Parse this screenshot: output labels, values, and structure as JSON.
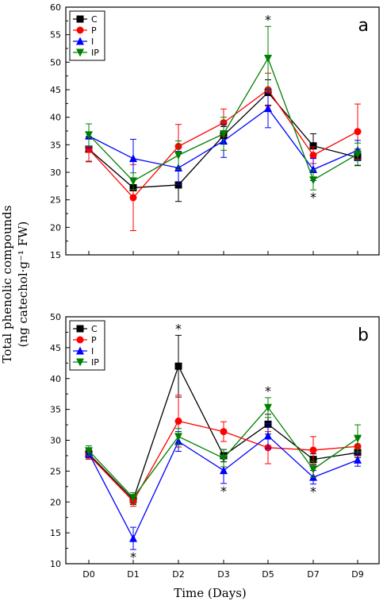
{
  "figure": {
    "ylabel_line1": "Total phenolic compounds",
    "ylabel_line2": "(ng catechol·g⁻¹ FW)",
    "xlabel": "Time (Days)"
  },
  "colors": {
    "C": "#000000",
    "P": "#ff0000",
    "I": "#0000ff",
    "IP": "#008000"
  },
  "chart_data": [
    {
      "type": "line",
      "panel_label": "a",
      "categories": [
        "D0",
        "D1",
        "D2",
        "D3",
        "D5",
        "D7",
        "D9"
      ],
      "ylim": [
        15,
        60
      ],
      "yticks": [
        15,
        20,
        25,
        30,
        35,
        40,
        45,
        50,
        55,
        60
      ],
      "legend_position": "top-left",
      "series": [
        {
          "name": "C",
          "color": "#000000",
          "marker": "square",
          "values": [
            34.2,
            27.2,
            27.7,
            36.7,
            44.5,
            34.8,
            32.7
          ],
          "errors": [
            2.2,
            1.7,
            3.0,
            1.6,
            2.3,
            2.2,
            1.5
          ]
        },
        {
          "name": "P",
          "color": "#ff0000",
          "marker": "circle",
          "values": [
            34.2,
            25.4,
            34.7,
            39.0,
            45.0,
            33.1,
            37.4
          ],
          "errors": [
            2.3,
            6.0,
            4.0,
            2.5,
            3.0,
            1.5,
            5.0
          ]
        },
        {
          "name": "I",
          "color": "#0000ff",
          "marker": "triangle-up",
          "values": [
            36.6,
            32.5,
            30.8,
            35.7,
            41.6,
            30.5,
            34.0
          ],
          "errors": [
            2.2,
            3.5,
            3.0,
            3.0,
            3.5,
            2.0,
            1.8
          ]
        },
        {
          "name": "IP",
          "color": "#008000",
          "marker": "triangle-down",
          "values": [
            36.8,
            28.4,
            33.1,
            37.0,
            50.7,
            28.6,
            33.3
          ],
          "errors": [
            2.0,
            1.5,
            2.6,
            3.0,
            5.8,
            1.8,
            2.0
          ]
        }
      ],
      "annotations": [
        {
          "x": "D5",
          "text": "*",
          "position": "above"
        },
        {
          "x": "D7",
          "text": "*",
          "position": "below"
        }
      ]
    },
    {
      "type": "line",
      "panel_label": "b",
      "categories": [
        "D0",
        "D1",
        "D2",
        "D3",
        "D5",
        "D7",
        "D9"
      ],
      "ylim": [
        10,
        50
      ],
      "yticks": [
        10,
        15,
        20,
        25,
        30,
        35,
        40,
        45,
        50
      ],
      "legend_position": "top-left",
      "series": [
        {
          "name": "C",
          "color": "#000000",
          "marker": "square",
          "values": [
            27.8,
            20.4,
            42.0,
            27.5,
            32.6,
            26.9,
            28.0
          ],
          "errors": [
            0.7,
            0.8,
            5.0,
            1.0,
            1.6,
            0.9,
            0.8
          ]
        },
        {
          "name": "P",
          "color": "#ff0000",
          "marker": "circle",
          "values": [
            27.6,
            20.1,
            33.1,
            31.4,
            28.8,
            28.4,
            29.0
          ],
          "errors": [
            0.7,
            0.8,
            4.2,
            1.6,
            2.6,
            2.2,
            1.5
          ]
        },
        {
          "name": "I",
          "color": "#0000ff",
          "marker": "triangle-up",
          "values": [
            27.9,
            14.1,
            29.8,
            25.1,
            30.7,
            24.0,
            26.8
          ],
          "errors": [
            0.7,
            1.8,
            1.6,
            2.1,
            2.0,
            1.1,
            1.0
          ]
        },
        {
          "name": "IP",
          "color": "#008000",
          "marker": "triangle-down",
          "values": [
            28.3,
            20.7,
            30.6,
            27.1,
            35.3,
            25.3,
            30.3
          ],
          "errors": [
            0.8,
            0.8,
            1.3,
            1.4,
            1.6,
            1.3,
            2.2
          ]
        }
      ],
      "annotations": [
        {
          "x": "D1",
          "text": "*",
          "position": "below"
        },
        {
          "x": "D2",
          "text": "*",
          "position": "above"
        },
        {
          "x": "D3",
          "text": "*",
          "position": "below"
        },
        {
          "x": "D5",
          "text": "*",
          "position": "above"
        },
        {
          "x": "D7",
          "text": "*",
          "position": "below"
        }
      ]
    }
  ]
}
